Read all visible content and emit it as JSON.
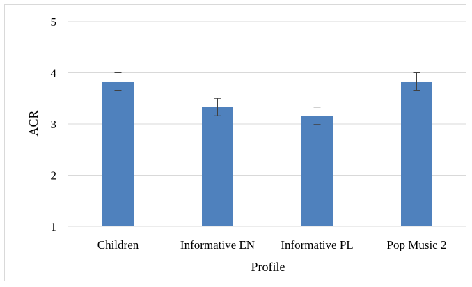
{
  "chart_data": {
    "type": "bar",
    "title": "",
    "xlabel": "Profile",
    "ylabel": "ACR",
    "categories": [
      "Children",
      "Informative EN",
      "Informative PL",
      "Pop Music 2"
    ],
    "values": [
      3.83,
      3.33,
      3.16,
      3.83
    ],
    "error_bars": [
      0.17,
      0.17,
      0.17,
      0.17
    ],
    "ylim": [
      1,
      5
    ],
    "yticks": [
      1,
      2,
      3,
      4,
      5
    ],
    "grid": "horizontal",
    "legend": "none",
    "bar_color": "#4f81bd",
    "error_bar_color": "#404040",
    "grid_color": "#d9d9d9"
  }
}
